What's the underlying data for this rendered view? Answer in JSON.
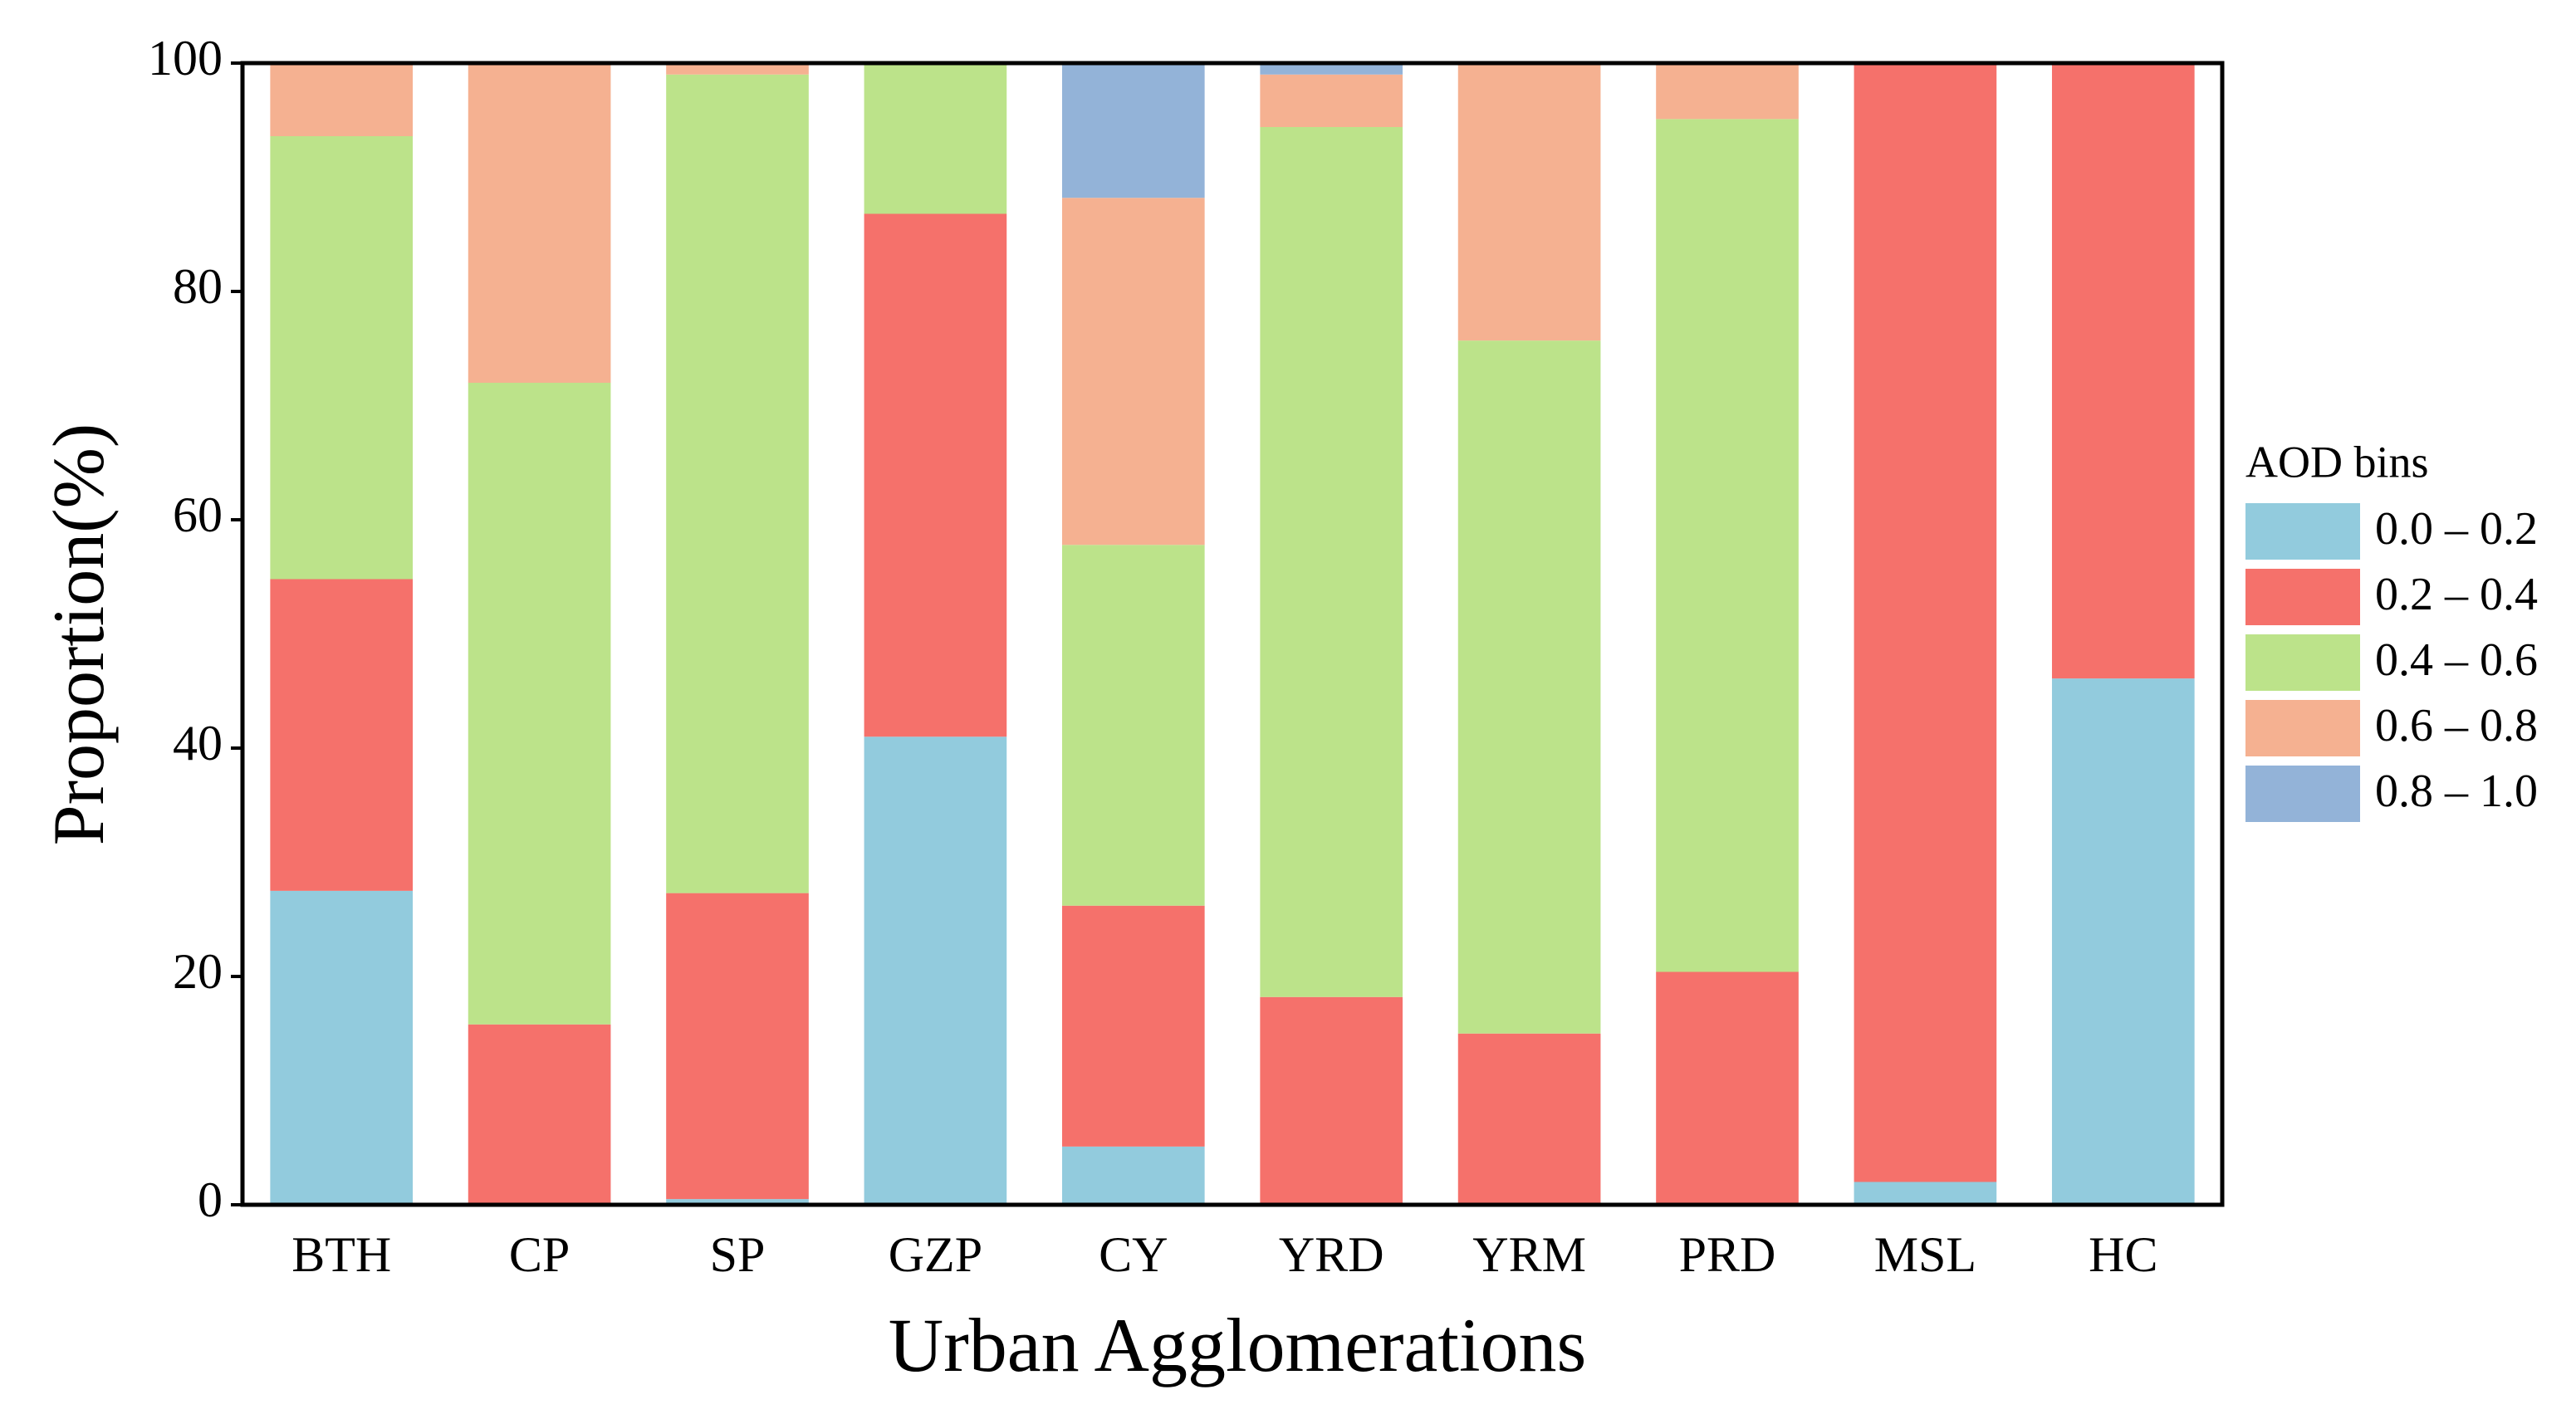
{
  "chart_data": {
    "type": "stacked_bar",
    "x_label": "Urban Agglomerations",
    "y_label": "Proportion(%)",
    "categories": [
      "BTH",
      "CP",
      "SP",
      "GZP",
      "CY",
      "YRD",
      "YRM",
      "PRD",
      "MSL",
      "HC"
    ],
    "series": [
      {
        "name": "0.0 – 0.2",
        "color": "#92cbdd",
        "values": [
          27.5,
          0,
          0.5,
          41,
          5.1,
          0,
          0,
          0,
          2.0,
          46.1
        ]
      },
      {
        "name": "0.2 – 0.4",
        "color": "#f5716b",
        "values": [
          27.3,
          15.8,
          26.8,
          45.8,
          21.1,
          18.2,
          15.0,
          20.4,
          98.0,
          53.9
        ]
      },
      {
        "name": "0.4 – 0.6",
        "color": "#bce38a",
        "values": [
          38.8,
          56.2,
          71.7,
          13.2,
          31.6,
          76.2,
          60.7,
          74.7,
          0,
          0
        ]
      },
      {
        "name": "0.6 – 0.8",
        "color": "#f5b191",
        "values": [
          6.4,
          28.0,
          1.0,
          0,
          30.4,
          4.6,
          24.3,
          4.9,
          0,
          0
        ]
      },
      {
        "name": "0.8 – 1.0",
        "color": "#93b3d8",
        "values": [
          0,
          0,
          0,
          0,
          11.8,
          1.0,
          0,
          0,
          0,
          0
        ]
      }
    ],
    "legend_title": "AOD bins",
    "legend": "right",
    "ylim": [
      0,
      100
    ],
    "yticks": [
      0,
      20,
      40,
      60,
      80,
      100
    ]
  }
}
